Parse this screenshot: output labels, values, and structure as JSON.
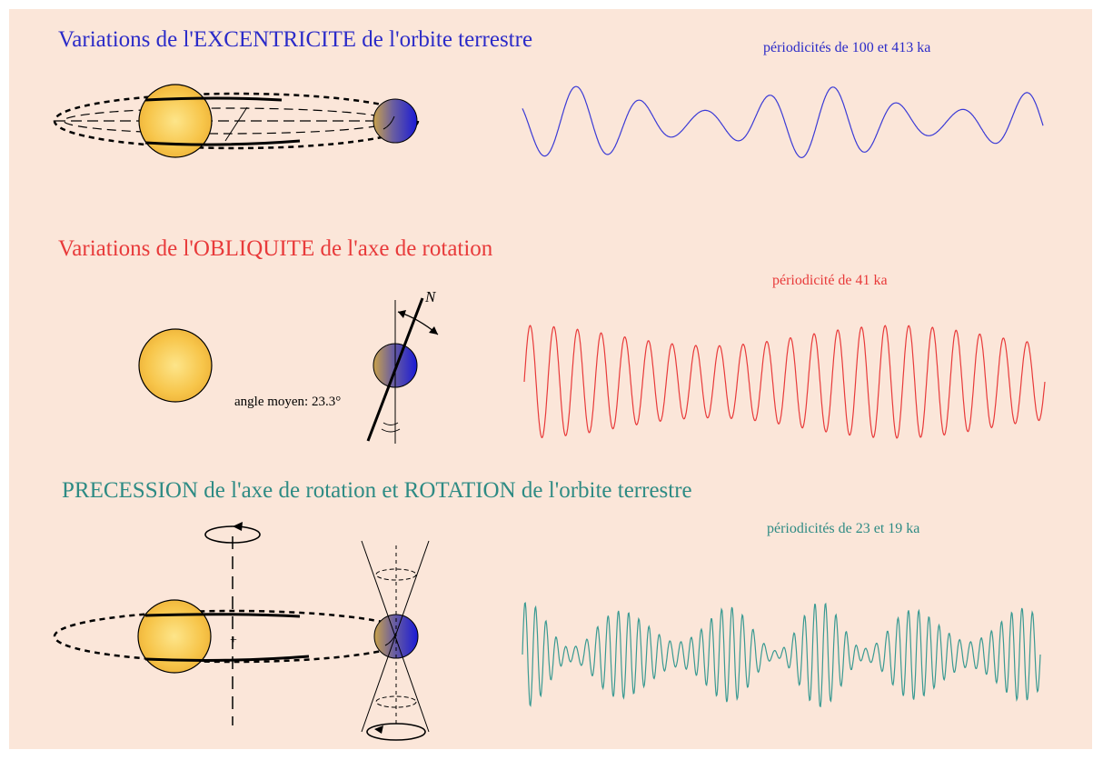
{
  "sections": [
    {
      "title": "Variations de l'EXCENTRICITE de l'orbite terrestre",
      "caption": "périodicités de 100 et 413 ka",
      "color": "#2b2bc8",
      "curve_color": "#3a3ad6"
    },
    {
      "title": "Variations de l'OBLIQUITE de l'axe de rotation",
      "caption": "périodicité de 41 ka",
      "color": "#e83a3a",
      "curve_color": "#e83a3a",
      "angle_label": "angle moyen: 23.3°",
      "north_label": "N"
    },
    {
      "title": "PRECESSION de l'axe de rotation et ROTATION de l'orbite terrestre",
      "caption": "périodicités de 23 et 19 ka",
      "color": "#2e8b84",
      "curve_color": "#3a9a92"
    }
  ],
  "colors": {
    "background": "#fbe6d9",
    "sun": "#f7c54a",
    "sun_core": "#fde58a",
    "earth_light": "#c9a24a",
    "earth_dark": "#1a1ad6"
  },
  "icons": [
    "sun-icon",
    "earth-icon",
    "rotation-arrow-icon"
  ]
}
